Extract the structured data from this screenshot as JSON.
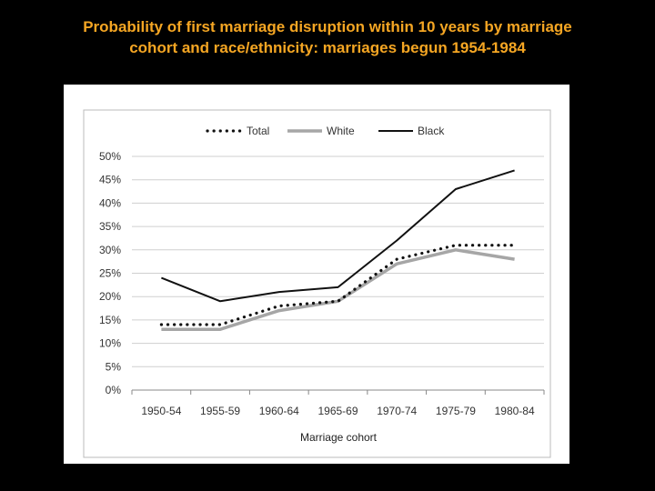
{
  "slide": {
    "title_line1": "Probability of first marriage disruption within 10 years by marriage",
    "title_line2": "cohort and race/ethnicity: marriages begun 1954-1984",
    "title_color": "#f5a623",
    "background": "#000000"
  },
  "chart_data": {
    "type": "line",
    "title": "",
    "xlabel": "Marriage cohort",
    "ylabel": "",
    "categories": [
      "1950-54",
      "1955-59",
      "1960-64",
      "1965-69",
      "1970-74",
      "1975-79",
      "1980-84"
    ],
    "ylim": [
      0,
      50
    ],
    "yticks": [
      "0%",
      "5%",
      "10%",
      "15%",
      "20%",
      "25%",
      "30%",
      "35%",
      "40%",
      "45%",
      "50%"
    ],
    "grid": true,
    "legend_position": "top-center",
    "series": [
      {
        "name": "Total",
        "values": [
          14,
          14,
          18,
          19,
          28,
          31,
          31
        ],
        "style": "dotted",
        "color": "#111111"
      },
      {
        "name": "White",
        "values": [
          13,
          13,
          17,
          19,
          27,
          30,
          28
        ],
        "style": "solid-thick",
        "color": "#a6a6a6"
      },
      {
        "name": "Black",
        "values": [
          24,
          19,
          21,
          22,
          32,
          43,
          47
        ],
        "style": "solid",
        "color": "#111111"
      }
    ]
  }
}
